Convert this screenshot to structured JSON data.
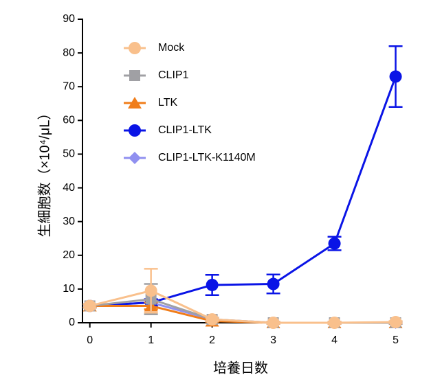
{
  "chart_data": {
    "type": "line",
    "x_label": "培養日数",
    "y_label": "生細胞数（×10⁴/μL）",
    "x": [
      0,
      1,
      2,
      3,
      4,
      5
    ],
    "xlim": [
      -0.12,
      5.05
    ],
    "xticks": [
      0,
      1,
      2,
      3,
      4,
      5
    ],
    "ylim": [
      0,
      90
    ],
    "yticks": [
      0,
      10,
      20,
      30,
      40,
      50,
      60,
      70,
      80,
      90
    ],
    "legend": "upper left",
    "series": [
      {
        "name": "Mock",
        "color": "#f9c08c",
        "marker": "circle",
        "values": [
          5,
          9.5,
          1,
          0,
          0,
          0.2
        ],
        "errors": [
          0.5,
          6.5,
          0.5,
          0.3,
          0.3,
          0.3
        ]
      },
      {
        "name": "CLIP1",
        "color": "#a0a0a4",
        "marker": "square",
        "values": [
          5,
          7,
          1,
          0,
          0,
          0
        ],
        "errors": [
          0.5,
          4.5,
          0.5,
          0.3,
          0.3,
          0.3
        ]
      },
      {
        "name": "LTK",
        "color": "#f07d1a",
        "marker": "triangle",
        "values": [
          5,
          5,
          0.5,
          0,
          0,
          0
        ],
        "errors": [
          0.5,
          1,
          0.3,
          0.3,
          0.3,
          0.3
        ]
      },
      {
        "name": "CLIP1-LTK",
        "color": "#0a14e6",
        "marker": "circle",
        "values": [
          5,
          6,
          11.2,
          11.5,
          23.5,
          73
        ],
        "errors": [
          0.5,
          1,
          3,
          2.8,
          2,
          9
        ]
      },
      {
        "name": "CLIP1-LTK-K1140M",
        "color": "#9090f0",
        "marker": "diamond",
        "values": [
          5,
          6,
          1,
          0,
          0,
          0
        ],
        "errors": [
          0.5,
          1,
          0.5,
          0.3,
          0.3,
          0.3
        ]
      }
    ]
  }
}
